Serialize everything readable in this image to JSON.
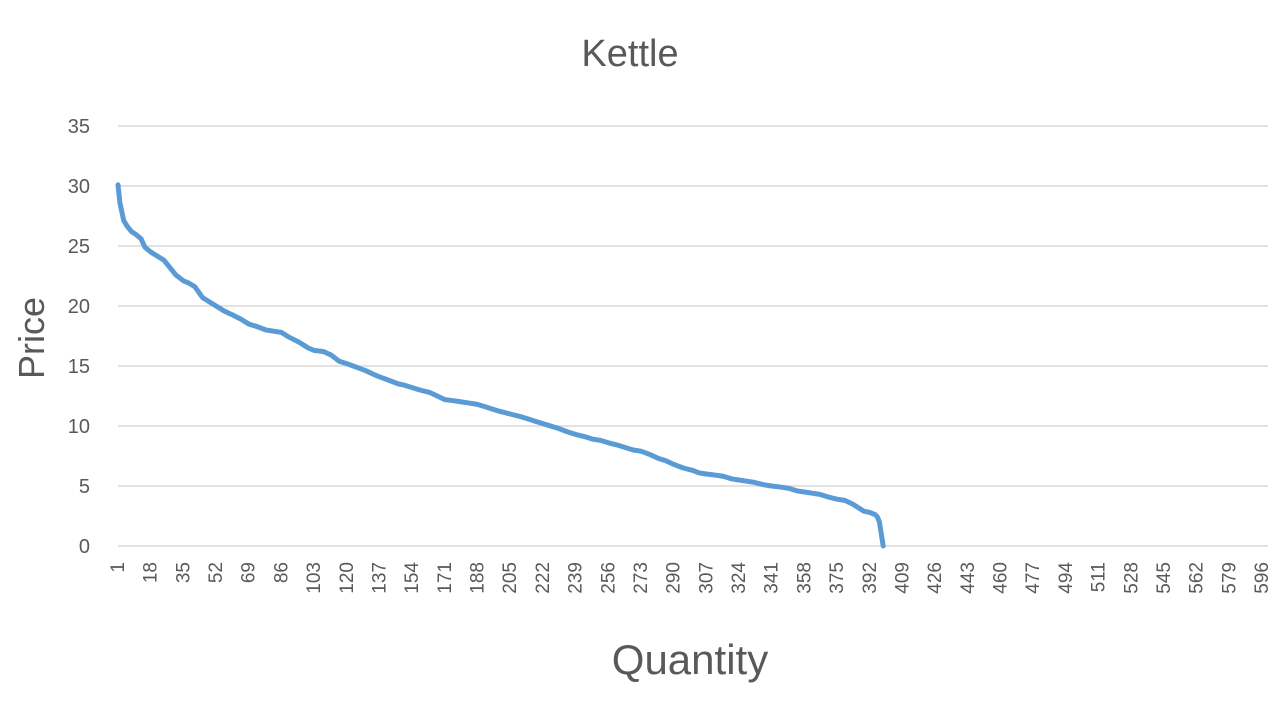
{
  "chart_data": {
    "type": "line",
    "title": "Kettle",
    "xlabel": "Quantity",
    "ylabel": "Price",
    "xlim": [
      1,
      596
    ],
    "ylim": [
      0,
      35
    ],
    "y_ticks": [
      0,
      5,
      10,
      15,
      20,
      25,
      30,
      35
    ],
    "x_ticks": [
      "1",
      "18",
      "35",
      "52",
      "69",
      "86",
      "103",
      "120",
      "137",
      "154",
      "171",
      "188",
      "205",
      "222",
      "239",
      "256",
      "273",
      "290",
      "307",
      "324",
      "341",
      "358",
      "375",
      "392",
      "409",
      "426",
      "443",
      "460",
      "477",
      "494",
      "511",
      "528",
      "545",
      "562",
      "579",
      "596"
    ],
    "grid": true,
    "legend": "none",
    "colors": {
      "series": "#5b9bd5",
      "grid": "#d9d9d9",
      "text": "#595959"
    },
    "series": [
      {
        "x": [
          1,
          2,
          4,
          6,
          8,
          10,
          13,
          15,
          18,
          22,
          25,
          28,
          31,
          35,
          38,
          41,
          45,
          48,
          52,
          56,
          60,
          65,
          69,
          73,
          78,
          82,
          86,
          90,
          95,
          100,
          103,
          108,
          112,
          116,
          120,
          125,
          130,
          134,
          137,
          142,
          147,
          150,
          154,
          158,
          163,
          167,
          171,
          176,
          180,
          184,
          188,
          192,
          196,
          200,
          205,
          210,
          214,
          218,
          222,
          226,
          230,
          235,
          239,
          244,
          248,
          252,
          256,
          261,
          265,
          269,
          273,
          278,
          282,
          286,
          290,
          295,
          300,
          303,
          307,
          312,
          316,
          320,
          324,
          328,
          332,
          337,
          341,
          346,
          350,
          354,
          358,
          362,
          366,
          370,
          375,
          379,
          383,
          386,
          389,
          392,
          395,
          396,
          397,
          398,
          399
        ],
        "y": [
          30.1,
          28.6,
          27.1,
          26.6,
          26.2,
          26.0,
          25.6,
          24.9,
          24.5,
          24.1,
          23.8,
          23.2,
          22.6,
          22.1,
          21.9,
          21.6,
          20.7,
          20.4,
          20.0,
          19.6,
          19.3,
          18.9,
          18.5,
          18.3,
          18.0,
          17.9,
          17.8,
          17.4,
          17.0,
          16.5,
          16.3,
          16.2,
          15.9,
          15.4,
          15.2,
          14.9,
          14.6,
          14.3,
          14.1,
          13.8,
          13.5,
          13.4,
          13.2,
          13.0,
          12.8,
          12.5,
          12.2,
          12.1,
          12.0,
          11.9,
          11.8,
          11.6,
          11.4,
          11.2,
          11.0,
          10.8,
          10.6,
          10.4,
          10.2,
          10.0,
          9.8,
          9.5,
          9.3,
          9.1,
          8.9,
          8.8,
          8.6,
          8.4,
          8.2,
          8.0,
          7.9,
          7.6,
          7.3,
          7.1,
          6.8,
          6.5,
          6.3,
          6.1,
          6.0,
          5.9,
          5.8,
          5.6,
          5.5,
          5.4,
          5.3,
          5.1,
          5.0,
          4.9,
          4.8,
          4.6,
          4.5,
          4.4,
          4.3,
          4.1,
          3.9,
          3.8,
          3.5,
          3.2,
          2.9,
          2.8,
          2.6,
          2.4,
          2.0,
          1.0,
          0.0
        ]
      }
    ]
  }
}
